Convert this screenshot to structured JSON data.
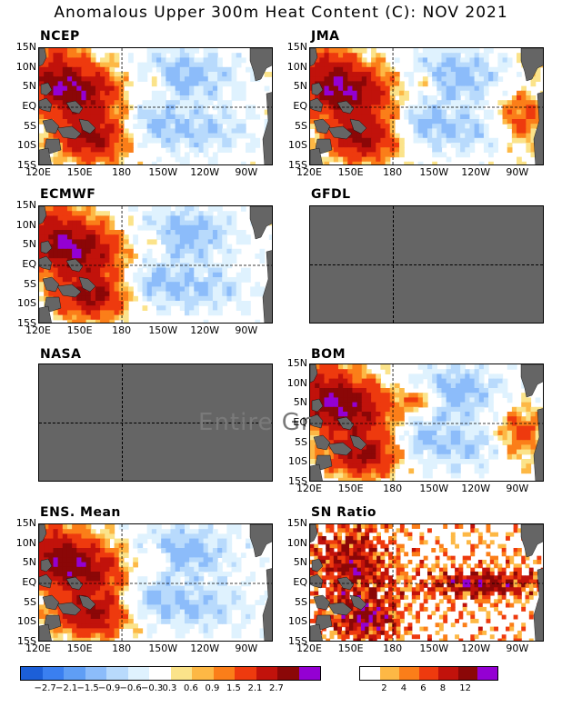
{
  "title": "Anomalous Upper 300m Heat Content (C): NOV 2021",
  "lat_labels": [
    "15N",
    "10N",
    "5N",
    "EQ",
    "5S",
    "10S",
    "15S"
  ],
  "lon_labels": [
    "120E",
    "150E",
    "180",
    "150W",
    "120W",
    "90W"
  ],
  "panels": {
    "ncep": {
      "label": "NCEP",
      "status": "data"
    },
    "jma": {
      "label": "JMA",
      "status": "data"
    },
    "ecmwf": {
      "label": "ECMWF",
      "status": "data"
    },
    "gfdl": {
      "label": "GFDL",
      "status": "no-data"
    },
    "nasa": {
      "label": "NASA",
      "status": "no-data"
    },
    "bom": {
      "label": "BOM",
      "status": "data"
    },
    "ens_mean": {
      "label": "ENS. Mean",
      "status": "data"
    },
    "sn_ratio": {
      "label": "SN Ratio",
      "status": "data"
    }
  },
  "overlay_text": "Entire Gr",
  "colorbar_anomaly": {
    "colors": [
      "#1c5fd8",
      "#3a7ff0",
      "#5f9ef5",
      "#8cbcfa",
      "#b8dafc",
      "#dff2fe",
      "#ffffff",
      "#fbe38a",
      "#fdb845",
      "#fb7e19",
      "#ee3a0e",
      "#c1120b",
      "#8b0707",
      "#9400d3"
    ],
    "ticks": [
      "−2.7",
      "−2.1",
      "−1.5",
      "−0.9",
      "−0.6",
      "−0.3",
      "0.3",
      "0.6",
      "0.9",
      "1.5",
      "2.1",
      "2.7"
    ]
  },
  "colorbar_snr": {
    "colors": [
      "#ffffff",
      "#fdb845",
      "#fb7e19",
      "#ee3a0e",
      "#c1120b",
      "#8b0707",
      "#9400d3"
    ],
    "ticks": [
      "2",
      "4",
      "6",
      "8",
      "12"
    ]
  },
  "map_colors": {
    "land": "#656565",
    "nodata": "#656565",
    "warm1": "#fbe38a",
    "warm2": "#fdb845",
    "warm3": "#fb7e19",
    "warm4": "#ee3a0e",
    "warm5": "#c1120b",
    "warm6": "#8b0707",
    "purple": "#9400d3",
    "cool1": "#dff2fe",
    "cool2": "#b8dafc",
    "cool3": "#8cbcfa",
    "cool4": "#5f9ef5"
  }
}
